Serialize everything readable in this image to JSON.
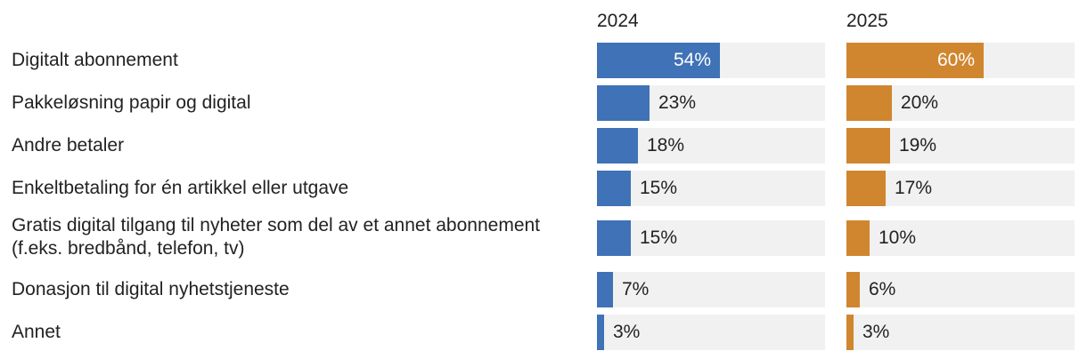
{
  "chart_data": {
    "type": "bar",
    "orientation": "horizontal",
    "categories": [
      "Digitalt abonnement",
      "Pakkeløsning papir og digital",
      "Andre betaler",
      "Enkeltbetaling for én artikkel eller utgave",
      "Gratis digital tilgang til nyheter som del av et annet abonnement (f.eks. bredbånd, telefon, tv)",
      "Donasjon til digital nyhetstjeneste",
      "Annet"
    ],
    "series": [
      {
        "name": "2024",
        "color": "#3f72b6",
        "values": [
          54,
          23,
          18,
          15,
          15,
          7,
          3
        ]
      },
      {
        "name": "2025",
        "color": "#d0862f",
        "values": [
          60,
          20,
          19,
          17,
          10,
          6,
          3
        ]
      }
    ],
    "value_format": "{v}%",
    "xlim": [
      0,
      100
    ],
    "track_color": "#f1f1f1",
    "layout": "small-multiples"
  }
}
